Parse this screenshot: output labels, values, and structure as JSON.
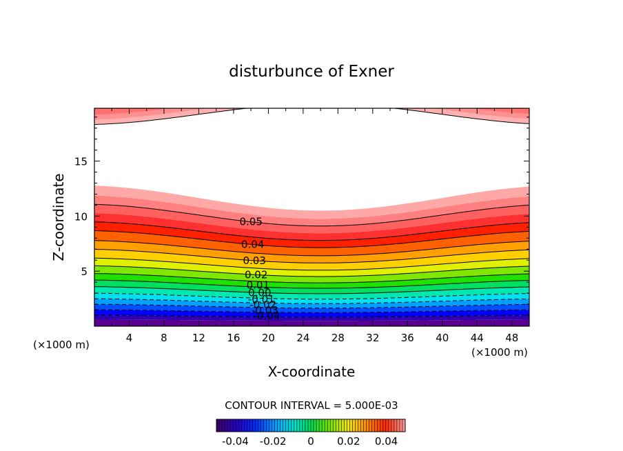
{
  "chart_data": {
    "type": "contour",
    "title": "disturbunce of Exner",
    "xlabel": "X-coordinate",
    "ylabel": "Z-coordinate",
    "x_unit": "(×1000 m)",
    "x_ticks": [
      4,
      8,
      12,
      16,
      20,
      24,
      28,
      32,
      36,
      40,
      44,
      48
    ],
    "y_ticks": [
      5,
      10,
      15
    ],
    "xlim": [
      0,
      50
    ],
    "ylim": [
      0,
      19.8
    ],
    "contour_interval_text": "CONTOUR INTERVAL =  5.000E-03",
    "contour_interval": 0.005,
    "contour_labels": [
      "0.05",
      "0.04",
      "0.03",
      "0.02",
      "0.01",
      "0.00",
      "-0.01",
      "-0.02",
      "-0.03",
      "-0.04"
    ],
    "colorbar": {
      "range": [
        -0.05,
        0.05
      ],
      "tick_labels": [
        "-0.04",
        "-0.02",
        "0",
        "0.02",
        "0.04"
      ],
      "tick_values": [
        -0.04,
        -0.02,
        0,
        0.02,
        0.04
      ]
    },
    "white_region_z": [
      12.8,
      18.4
    ],
    "colors": [
      "#5a0090",
      "#3000b0",
      "#0000ff",
      "#0050ff",
      "#00a0ff",
      "#00e0f0",
      "#00e8b0",
      "#00e060",
      "#20e000",
      "#80e800",
      "#e0f000",
      "#ffd000",
      "#ffa000",
      "#ff6000",
      "#ff2000",
      "#ff3030",
      "#ff6060",
      "#ff8080",
      "#ffa8a8"
    ]
  }
}
